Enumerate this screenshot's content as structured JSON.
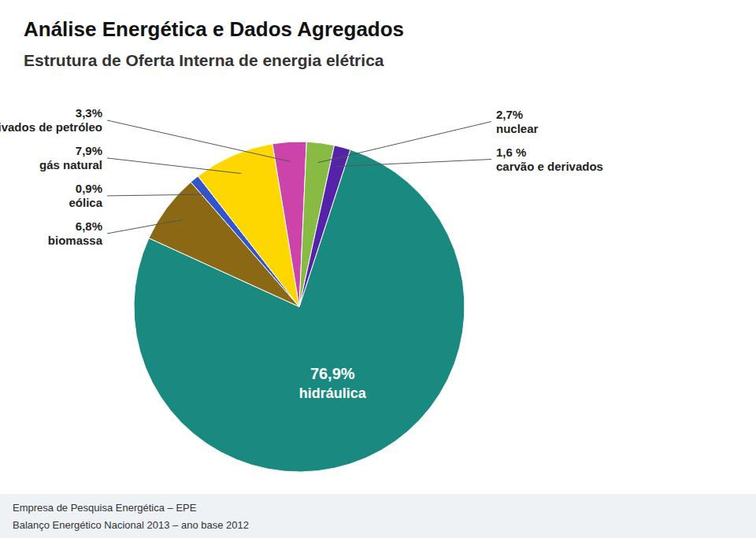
{
  "chart_data": {
    "type": "pie",
    "title": "Análise Energética e Dados Agregados",
    "subtitle": "Estrutura de Oferta Interna de energia elétrica",
    "annotations": [
      "Empresa de Pesquisa Energética – EPE",
      "Balanço Energético Nacional 2013 – ano base 2012"
    ],
    "categories": [
      "hidráulica",
      "biomassa",
      "eólica",
      "gás natural",
      "derivados de petróleo",
      "nuclear",
      "carvão e derivados"
    ],
    "values": [
      76.9,
      6.8,
      0.9,
      7.9,
      3.3,
      2.7,
      1.6
    ],
    "value_labels": [
      "76,9%",
      "6,8%",
      "0,9%",
      "7,9%",
      "3,3%",
      "2,7%",
      "1,6 %"
    ],
    "colors": [
      "#1a8a80",
      "#8B6914",
      "#3355CC",
      "#FFD700",
      "#CC44AA",
      "#88BB44",
      "#5522AA"
    ],
    "data_labels": true
  }
}
